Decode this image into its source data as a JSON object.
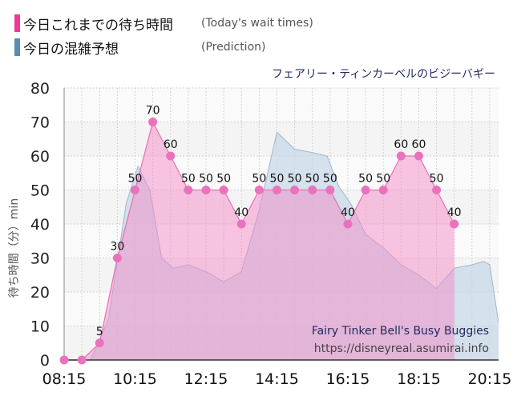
{
  "legend": {
    "actual": {
      "label": "今日これまでの待ち時間",
      "sublabel": "(Today's wait times)",
      "color": "#ee3a96"
    },
    "predicted": {
      "label": "今日の混雑予想",
      "sublabel": "(Prediction)",
      "color": "#5b8ab5"
    }
  },
  "attraction_title": "フェアリー・ティンカーベルのビジーバギー",
  "watermark": {
    "name": "Fairy Tinker Bell's Busy Buggies",
    "url": "https://disneyreal.asumirai.info"
  },
  "chart_data": {
    "type": "area",
    "xlabel": "",
    "ylabel": "待ち時間（分）min",
    "ylim": [
      0,
      80
    ],
    "yticks": [
      0,
      10,
      20,
      30,
      40,
      50,
      60,
      70,
      80
    ],
    "xlim": [
      "08:15",
      "20:30"
    ],
    "xticks": [
      "08:15",
      "10:15",
      "12:15",
      "14:15",
      "16:15",
      "18:15",
      "20:15"
    ],
    "grid": true,
    "series": [
      {
        "name": "今日これまでの待ち時間",
        "color": "#ee3a96",
        "points": [
          [
            "08:15",
            0
          ],
          [
            "08:45",
            0
          ],
          [
            "09:15",
            5
          ],
          [
            "09:45",
            30
          ],
          [
            "10:15",
            50
          ],
          [
            "10:45",
            70
          ],
          [
            "11:15",
            60
          ],
          [
            "11:45",
            50
          ],
          [
            "12:15",
            50
          ],
          [
            "12:45",
            50
          ],
          [
            "13:15",
            40
          ],
          [
            "13:45",
            50
          ],
          [
            "14:15",
            50
          ],
          [
            "14:45",
            50
          ],
          [
            "15:15",
            50
          ],
          [
            "15:45",
            50
          ],
          [
            "16:15",
            40
          ],
          [
            "16:45",
            50
          ],
          [
            "17:15",
            50
          ],
          [
            "17:45",
            60
          ],
          [
            "18:15",
            60
          ],
          [
            "18:45",
            50
          ],
          [
            "19:15",
            40
          ]
        ]
      },
      {
        "name": "今日の混雑予想",
        "color": "#5b8ab5",
        "points": [
          [
            "09:00",
            0
          ],
          [
            "09:30",
            12
          ],
          [
            "10:00",
            46
          ],
          [
            "10:20",
            57
          ],
          [
            "10:40",
            50
          ],
          [
            "11:00",
            30
          ],
          [
            "11:20",
            27
          ],
          [
            "11:45",
            28
          ],
          [
            "12:15",
            26
          ],
          [
            "12:45",
            23
          ],
          [
            "13:15",
            26
          ],
          [
            "13:45",
            44
          ],
          [
            "14:15",
            67
          ],
          [
            "14:45",
            62
          ],
          [
            "15:15",
            61
          ],
          [
            "15:40",
            60
          ],
          [
            "16:00",
            51
          ],
          [
            "16:20",
            46
          ],
          [
            "16:45",
            37
          ],
          [
            "17:15",
            33
          ],
          [
            "17:45",
            28
          ],
          [
            "18:15",
            25
          ],
          [
            "18:45",
            21
          ],
          [
            "19:15",
            27
          ],
          [
            "19:45",
            28
          ],
          [
            "20:05",
            29
          ],
          [
            "20:15",
            28
          ],
          [
            "20:30",
            11
          ]
        ]
      }
    ]
  }
}
